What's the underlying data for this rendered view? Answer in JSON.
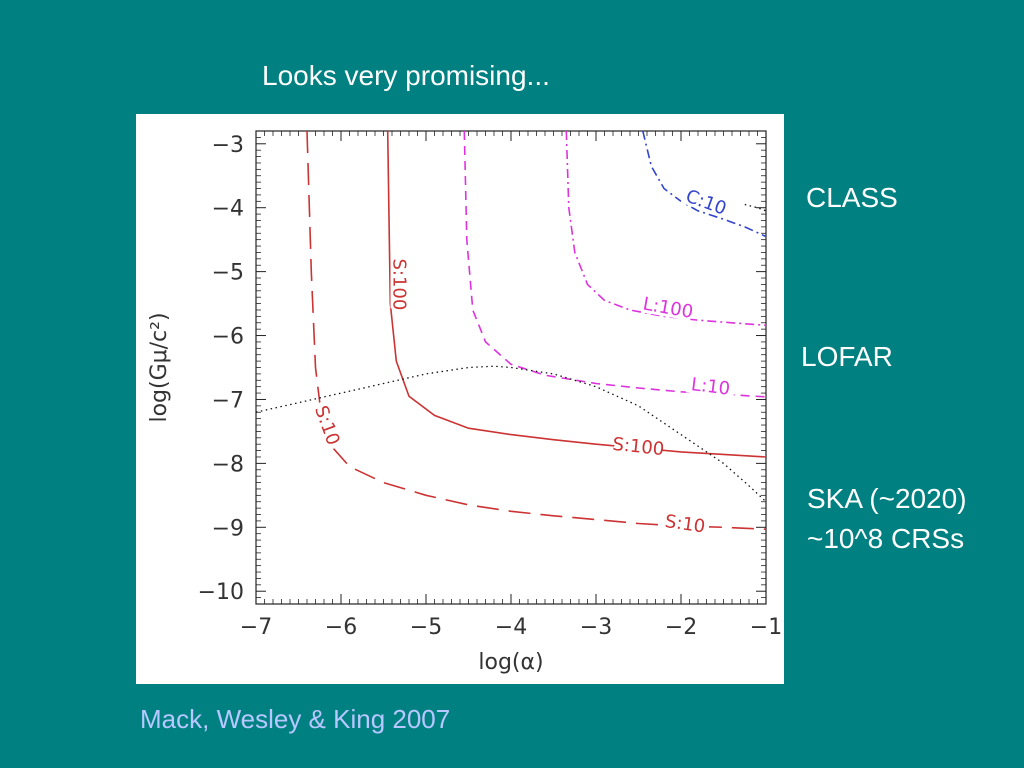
{
  "slide": {
    "title": "Looks very promising...",
    "citation": "Mack, Wesley & King 2007",
    "labels": {
      "class": "CLASS",
      "lofar": "LOFAR",
      "ska_line1": "SKA (~2020)",
      "ska_line2": "~10^8 CRSs"
    }
  },
  "chart_data": {
    "type": "line",
    "title": "",
    "xlabel": "log(α)",
    "ylabel": "log(Gμ/c²)",
    "xlim": [
      -7,
      -1
    ],
    "ylim": [
      -10.2,
      -2.8
    ],
    "xticks": [
      -7,
      -6,
      -5,
      -4,
      -3,
      -2,
      -1
    ],
    "yticks": [
      -3,
      -4,
      -5,
      -6,
      -7,
      -8,
      -9,
      -10
    ],
    "xtick_labels": [
      "−7",
      "−6",
      "−5",
      "−4",
      "−3",
      "−2",
      "−1"
    ],
    "ytick_labels": [
      "−3",
      "−4",
      "−5",
      "−6",
      "−7",
      "−8",
      "−9",
      "−10"
    ],
    "grid": false,
    "series": [
      {
        "name": "S:10",
        "color": "#cc3333",
        "style": "long-dash",
        "x": [
          -6.4,
          -6.35,
          -6.3,
          -6.2,
          -5.9,
          -5.5,
          -5.0,
          -4.5,
          -4.0,
          -3.5,
          -3.0,
          -2.5,
          -2.0,
          -1.5,
          -1.0
        ],
        "y": [
          -2.8,
          -5.0,
          -6.5,
          -7.6,
          -8.05,
          -8.3,
          -8.5,
          -8.65,
          -8.75,
          -8.82,
          -8.88,
          -8.94,
          -8.98,
          -9.0,
          -9.03
        ]
      },
      {
        "name": "S:100",
        "color": "#cc3333",
        "style": "solid",
        "x": [
          -5.45,
          -5.42,
          -5.35,
          -5.2,
          -4.9,
          -4.5,
          -4.0,
          -3.5,
          -3.0,
          -2.5,
          -2.0,
          -1.5,
          -1.0
        ],
        "y": [
          -2.8,
          -5.5,
          -6.4,
          -6.95,
          -7.25,
          -7.45,
          -7.55,
          -7.63,
          -7.7,
          -7.76,
          -7.82,
          -7.86,
          -7.9
        ]
      },
      {
        "name": "L:10",
        "color": "#dd33dd",
        "style": "dashed",
        "x": [
          -4.55,
          -4.52,
          -4.45,
          -4.3,
          -4.0,
          -3.6,
          -3.0,
          -2.5,
          -2.0,
          -1.5,
          -1.0
        ],
        "y": [
          -2.8,
          -4.5,
          -5.6,
          -6.1,
          -6.45,
          -6.62,
          -6.75,
          -6.82,
          -6.88,
          -6.92,
          -6.96
        ]
      },
      {
        "name": "L:100",
        "color": "#dd33dd",
        "style": "dash-dot",
        "x": [
          -3.35,
          -3.32,
          -3.25,
          -3.1,
          -2.9,
          -2.6,
          -2.2,
          -1.8,
          -1.4,
          -1.0
        ],
        "y": [
          -2.8,
          -4.0,
          -4.7,
          -5.2,
          -5.45,
          -5.6,
          -5.7,
          -5.76,
          -5.8,
          -5.84
        ]
      },
      {
        "name": "C:10",
        "color": "#3344cc",
        "style": "dash-dot",
        "x": [
          -2.45,
          -2.35,
          -2.2,
          -2.0,
          -1.8,
          -1.5,
          -1.25,
          -1.0
        ],
        "y": [
          -2.8,
          -3.35,
          -3.7,
          -3.9,
          -4.05,
          -4.18,
          -4.3,
          -4.45
        ]
      },
      {
        "name": "boundary",
        "color": "#111111",
        "style": "dotted",
        "x": [
          -7.0,
          -6.5,
          -6.0,
          -5.5,
          -5.0,
          -4.5,
          -4.2,
          -4.0,
          -3.5,
          -3.0,
          -2.5,
          -2.0,
          -1.5,
          -1.2,
          -1.0
        ],
        "y": [
          -7.2,
          -7.05,
          -6.9,
          -6.75,
          -6.6,
          -6.5,
          -6.48,
          -6.5,
          -6.6,
          -6.8,
          -7.1,
          -7.55,
          -8.0,
          -8.35,
          -8.6
        ]
      },
      {
        "name": "C:10-dotted-tail",
        "color": "#111111",
        "style": "dotted",
        "x": [
          -1.25,
          -1.1,
          -1.0
        ],
        "y": [
          -3.95,
          -4.0,
          -4.05
        ]
      }
    ],
    "annotations": [
      {
        "text": "S:10",
        "x": -6.15,
        "y": -7.4,
        "rotate": 70,
        "color": "#cc3333"
      },
      {
        "text": "S:100",
        "x": -5.3,
        "y": -5.2,
        "rotate": 90,
        "color": "#cc3333"
      },
      {
        "text": "S:100",
        "x": -2.5,
        "y": -7.72,
        "rotate": 6,
        "color": "#cc3333"
      },
      {
        "text": "S:10",
        "x": -1.95,
        "y": -8.93,
        "rotate": 8,
        "color": "#cc3333"
      },
      {
        "text": "L:10",
        "x": -1.65,
        "y": -6.78,
        "rotate": 7,
        "color": "#dd33dd"
      },
      {
        "text": "L:100",
        "x": -2.15,
        "y": -5.55,
        "rotate": 10,
        "color": "#dd33dd"
      },
      {
        "text": "C:10",
        "x": -1.7,
        "y": -3.9,
        "rotate": 20,
        "color": "#3344cc"
      }
    ]
  }
}
